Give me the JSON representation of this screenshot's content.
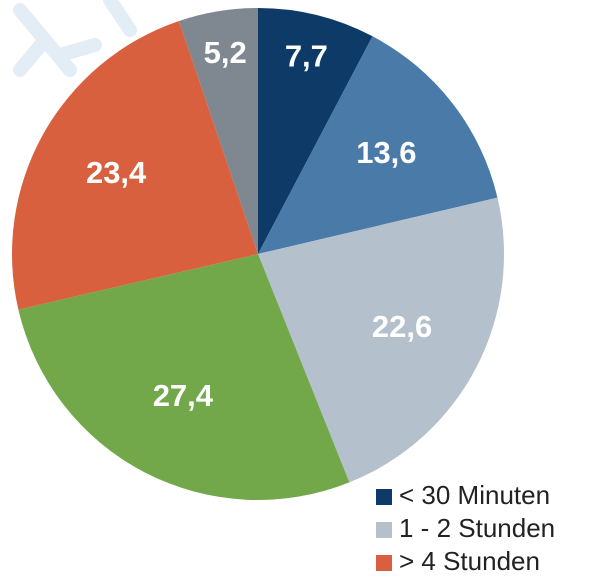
{
  "chart_data": {
    "type": "pie",
    "categories": [
      "< 30 Minuten",
      null,
      "1 - 2 Stunden",
      null,
      "> 4 Stunden",
      null
    ],
    "values": [
      7.7,
      13.6,
      22.6,
      27.4,
      23.4,
      5.2
    ],
    "value_labels": [
      "7,7",
      "13,6",
      "22,6",
      "27,4",
      "23,4",
      "5,2"
    ],
    "colors": [
      "#0d3a66",
      "#4a7aa8",
      "#b4c0cb",
      "#72a84a",
      "#d9603e",
      "#7f8791"
    ]
  }
}
